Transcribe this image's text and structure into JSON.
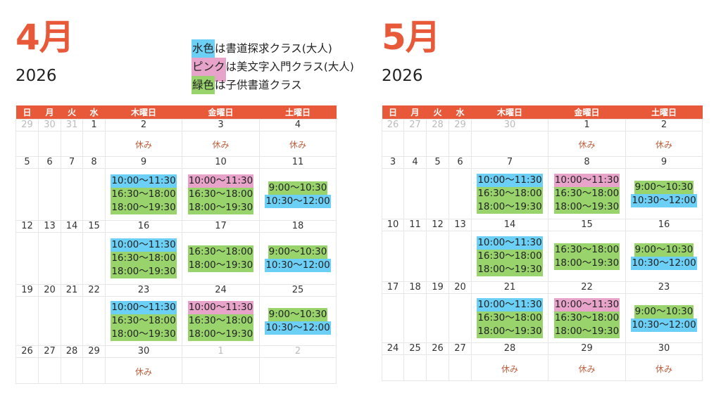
{
  "colors": {
    "header": "#e8593a",
    "blue": "#6ccff6",
    "pink": "#e7a3c9",
    "green": "#98d36c"
  },
  "legend": [
    {
      "swatch": "水色",
      "text": "は書道探求クラス(大人)",
      "color": "blue"
    },
    {
      "swatch": "ピンク",
      "text": "は美文字入門クラス(大人)",
      "color": "pink"
    },
    {
      "swatch": "緑色",
      "text": "は子供書道クラス",
      "color": "green"
    }
  ],
  "months": [
    {
      "title": "4月",
      "year": "2026",
      "headers": [
        "日",
        "月",
        "火",
        "水",
        "木曜日",
        "金曜日",
        "土曜日"
      ],
      "weeks": [
        {
          "days": [
            {
              "d": "29",
              "muted": true
            },
            {
              "d": "30",
              "muted": true
            },
            {
              "d": "31",
              "muted": true
            },
            {
              "d": "1"
            },
            {
              "d": "2",
              "note": "休み"
            },
            {
              "d": "3",
              "note": "休み"
            },
            {
              "d": "4",
              "note": "休み"
            }
          ]
        },
        {
          "days": [
            {
              "d": "5"
            },
            {
              "d": "6"
            },
            {
              "d": "7"
            },
            {
              "d": "8"
            },
            {
              "d": "9",
              "slots": [
                {
                  "time": "10:00〜11:30",
                  "color": "blue"
                },
                {
                  "time": "16:30〜18:00",
                  "color": "green"
                },
                {
                  "time": "18:00〜19:30",
                  "color": "green"
                }
              ]
            },
            {
              "d": "10",
              "slots": [
                {
                  "time": "10:00〜11:30",
                  "color": "pink"
                },
                {
                  "time": "16:30〜18:00",
                  "color": "green"
                },
                {
                  "time": "18:00〜19:30",
                  "color": "green"
                }
              ]
            },
            {
              "d": "11",
              "slots": [
                {
                  "time": "9:00〜10:30",
                  "color": "green"
                },
                {
                  "time": "10:30〜12:00",
                  "color": "blue"
                }
              ]
            }
          ]
        },
        {
          "days": [
            {
              "d": "12"
            },
            {
              "d": "13"
            },
            {
              "d": "14"
            },
            {
              "d": "15"
            },
            {
              "d": "16",
              "slots": [
                {
                  "time": "10:00〜11:30",
                  "color": "blue"
                },
                {
                  "time": "16:30〜18:00",
                  "color": "green"
                },
                {
                  "time": "18:00〜19:30",
                  "color": "green"
                }
              ]
            },
            {
              "d": "17",
              "slots": [
                {
                  "time": "16:30〜18:00",
                  "color": "green"
                },
                {
                  "time": "18:00〜19:30",
                  "color": "green"
                }
              ]
            },
            {
              "d": "18",
              "slots": [
                {
                  "time": "9:00〜10:30",
                  "color": "green"
                },
                {
                  "time": "10:30〜12:00",
                  "color": "blue"
                }
              ]
            }
          ]
        },
        {
          "days": [
            {
              "d": "19"
            },
            {
              "d": "20"
            },
            {
              "d": "21"
            },
            {
              "d": "22"
            },
            {
              "d": "23",
              "slots": [
                {
                  "time": "10:00〜11:30",
                  "color": "blue"
                },
                {
                  "time": "16:30〜18:00",
                  "color": "green"
                },
                {
                  "time": "18:00〜19:30",
                  "color": "green"
                }
              ]
            },
            {
              "d": "24",
              "slots": [
                {
                  "time": "10:00〜11:30",
                  "color": "pink"
                },
                {
                  "time": "16:30〜18:00",
                  "color": "green"
                },
                {
                  "time": "18:00〜19:30",
                  "color": "green"
                }
              ]
            },
            {
              "d": "25",
              "slots": [
                {
                  "time": "9:00〜10:30",
                  "color": "green"
                },
                {
                  "time": "10:30〜12:00",
                  "color": "blue"
                }
              ]
            }
          ]
        },
        {
          "days": [
            {
              "d": "26"
            },
            {
              "d": "27"
            },
            {
              "d": "28"
            },
            {
              "d": "29"
            },
            {
              "d": "30",
              "note": "休み"
            },
            {
              "d": "1",
              "muted": true
            },
            {
              "d": "2",
              "muted": true
            }
          ]
        }
      ]
    },
    {
      "title": "5月",
      "year": "2026",
      "headers": [
        "日",
        "月",
        "火",
        "水",
        "木曜日",
        "金曜日",
        "土曜日"
      ],
      "weeks": [
        {
          "days": [
            {
              "d": "26",
              "muted": true
            },
            {
              "d": "27",
              "muted": true
            },
            {
              "d": "28",
              "muted": true
            },
            {
              "d": "29",
              "muted": true
            },
            {
              "d": "30",
              "muted": true
            },
            {
              "d": "1",
              "note": "休み"
            },
            {
              "d": "2",
              "note": "休み"
            }
          ]
        },
        {
          "days": [
            {
              "d": "3"
            },
            {
              "d": "4"
            },
            {
              "d": "5"
            },
            {
              "d": "6"
            },
            {
              "d": "7",
              "slots": [
                {
                  "time": "10:00〜11:30",
                  "color": "blue"
                },
                {
                  "time": "16:30〜18:00",
                  "color": "green"
                },
                {
                  "time": "18:00〜19:30",
                  "color": "green"
                }
              ]
            },
            {
              "d": "8",
              "slots": [
                {
                  "time": "10:00〜11:30",
                  "color": "pink"
                },
                {
                  "time": "16:30〜18:00",
                  "color": "green"
                },
                {
                  "time": "18:00〜19:30",
                  "color": "green"
                }
              ]
            },
            {
              "d": "9",
              "slots": [
                {
                  "time": "9:00〜10:30",
                  "color": "green"
                },
                {
                  "time": "10:30〜12:00",
                  "color": "blue"
                }
              ]
            }
          ]
        },
        {
          "days": [
            {
              "d": "10"
            },
            {
              "d": "11"
            },
            {
              "d": "12"
            },
            {
              "d": "13"
            },
            {
              "d": "14",
              "slots": [
                {
                  "time": "10:00〜11:30",
                  "color": "blue"
                },
                {
                  "time": "16:30〜18:00",
                  "color": "green"
                },
                {
                  "time": "18:00〜19:30",
                  "color": "green"
                }
              ]
            },
            {
              "d": "15",
              "slots": [
                {
                  "time": "16:30〜18:00",
                  "color": "green"
                },
                {
                  "time": "18:00〜19:30",
                  "color": "green"
                }
              ]
            },
            {
              "d": "16",
              "slots": [
                {
                  "time": "9:00〜10:30",
                  "color": "green"
                },
                {
                  "time": "10:30〜12:00",
                  "color": "blue"
                }
              ]
            }
          ]
        },
        {
          "days": [
            {
              "d": "17"
            },
            {
              "d": "18"
            },
            {
              "d": "19"
            },
            {
              "d": "20"
            },
            {
              "d": "21",
              "slots": [
                {
                  "time": "10:00〜11:30",
                  "color": "blue"
                },
                {
                  "time": "16:30〜18:00",
                  "color": "green"
                },
                {
                  "time": "18:00〜19:30",
                  "color": "green"
                }
              ]
            },
            {
              "d": "22",
              "slots": [
                {
                  "time": "10:00〜11:30",
                  "color": "pink"
                },
                {
                  "time": "16:30〜18:00",
                  "color": "green"
                },
                {
                  "time": "18:00〜19:30",
                  "color": "green"
                }
              ]
            },
            {
              "d": "23",
              "slots": [
                {
                  "time": "9:00〜10:30",
                  "color": "green"
                },
                {
                  "time": "10:30〜12:00",
                  "color": "blue"
                }
              ]
            }
          ]
        },
        {
          "days": [
            {
              "d": "24"
            },
            {
              "d": "25"
            },
            {
              "d": "26"
            },
            {
              "d": "27"
            },
            {
              "d": "28",
              "note": "休み"
            },
            {
              "d": "29",
              "note": "休み"
            },
            {
              "d": "30",
              "note": "休み"
            }
          ]
        }
      ]
    }
  ]
}
